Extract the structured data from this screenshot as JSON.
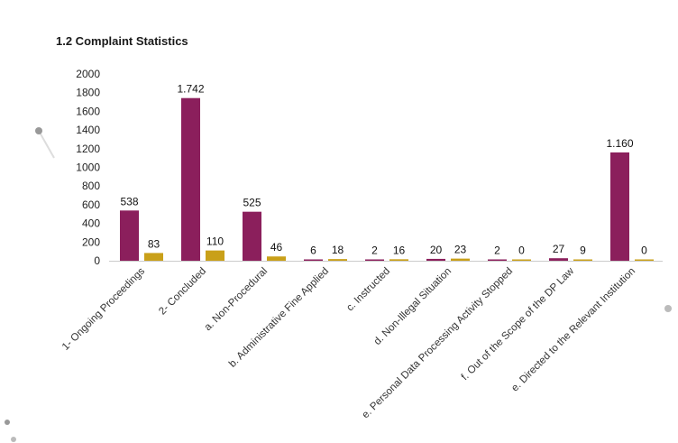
{
  "page_title": "1.2 Complaint Statistics",
  "colors": {
    "series1": "#8b1f5c",
    "series2": "#c9a019",
    "axis": "#cccccc",
    "decor": "#999999"
  },
  "chart_data": {
    "type": "bar",
    "title": "",
    "xlabel": "",
    "ylabel": "",
    "ylim": [
      0,
      2000
    ],
    "yticks": [
      0,
      200,
      400,
      600,
      800,
      1000,
      1200,
      1400,
      1600,
      1800,
      2000
    ],
    "grid": false,
    "legend": "none",
    "categories": [
      "1- Ongoing Proceedings",
      "2- Concluded",
      "a. Non-Procedural",
      "b. Administrative Fine Applied",
      "c. Instructed",
      "d. Non-Illegal Situation",
      "e. Personal Data Processing Activity Stopped",
      "f. Out of the Scope of the DP Law",
      "e. Directed to the Relevant Institution"
    ],
    "series": [
      {
        "values": [
          538,
          1742,
          525,
          6,
          2,
          20,
          2,
          27,
          1160
        ],
        "labels": [
          "538",
          "1.742",
          "525",
          "6",
          "2",
          "20",
          "2",
          "27",
          "1.160"
        ]
      },
      {
        "values": [
          83,
          110,
          46,
          18,
          16,
          23,
          0,
          9,
          0
        ],
        "labels": [
          "83",
          "110",
          "46",
          "18",
          "16",
          "23",
          "0",
          "9",
          "0"
        ]
      }
    ]
  }
}
